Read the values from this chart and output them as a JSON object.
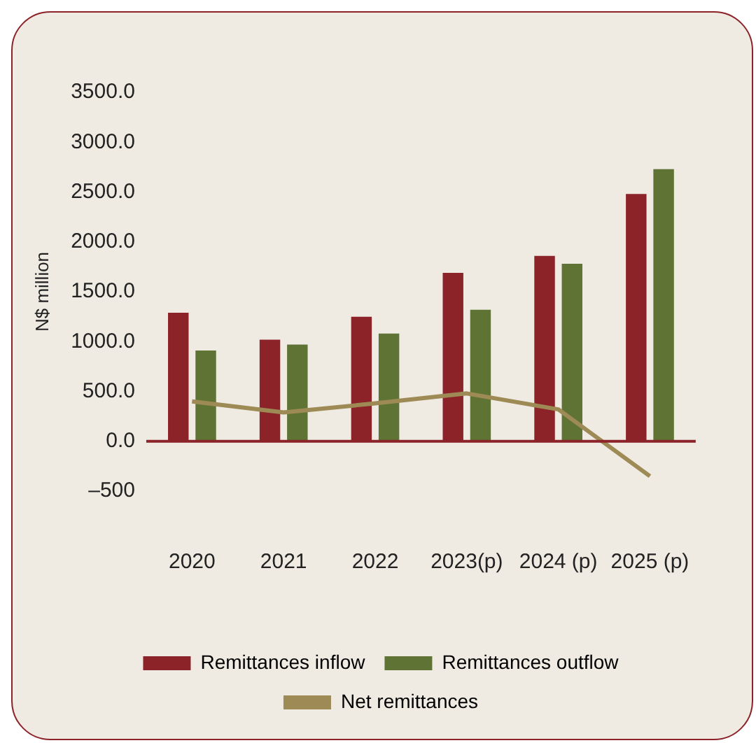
{
  "chart_data": {
    "type": "bar",
    "ylabel": "N$ million",
    "categories": [
      "2020",
      "2021",
      "2022",
      "2023(p)",
      "2024 (p)",
      "2025 (p)"
    ],
    "series": [
      {
        "name": "Remittances inflow",
        "color": "#8b2329",
        "values": [
          1290,
          1020,
          1250,
          1690,
          1860,
          2480
        ]
      },
      {
        "name": "Remittances outflow",
        "color": "#5e7334",
        "values": [
          910,
          970,
          1080,
          1320,
          1780,
          2730
        ]
      },
      {
        "name": "Net remittances",
        "type": "line",
        "color": "#9e8a55",
        "values": [
          400,
          290,
          380,
          480,
          320,
          -350
        ]
      }
    ],
    "ylim": [
      -500,
      3500
    ],
    "yticks": [
      {
        "value": -500,
        "label": "–500"
      },
      {
        "value": 0,
        "label": "0.0"
      },
      {
        "value": 500,
        "label": "500.0"
      },
      {
        "value": 1000,
        "label": "1000.0"
      },
      {
        "value": 1500,
        "label": "1500.0"
      },
      {
        "value": 2000,
        "label": "2000.0"
      },
      {
        "value": 2500,
        "label": "2500.0"
      },
      {
        "value": 3000,
        "label": "3000.0"
      },
      {
        "value": 3500,
        "label": "3500.0"
      }
    ],
    "ref_lines": [
      {
        "axis": "y",
        "value": 0,
        "color": "#8b2329"
      }
    ],
    "grid": false,
    "legend": "bottom",
    "marker": "none",
    "line_style": "solid"
  }
}
